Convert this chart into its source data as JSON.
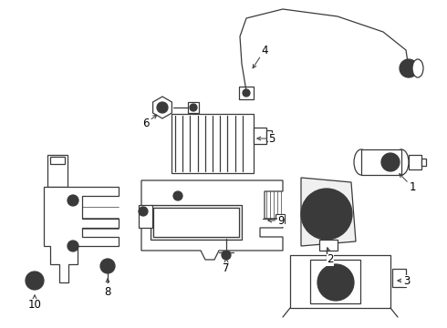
{
  "bg_color": "#ffffff",
  "line_color": "#3a3a3a",
  "label_color": "#000000",
  "fig_width": 4.9,
  "fig_height": 3.6,
  "dpi": 100,
  "label_fontsize": 8.5
}
